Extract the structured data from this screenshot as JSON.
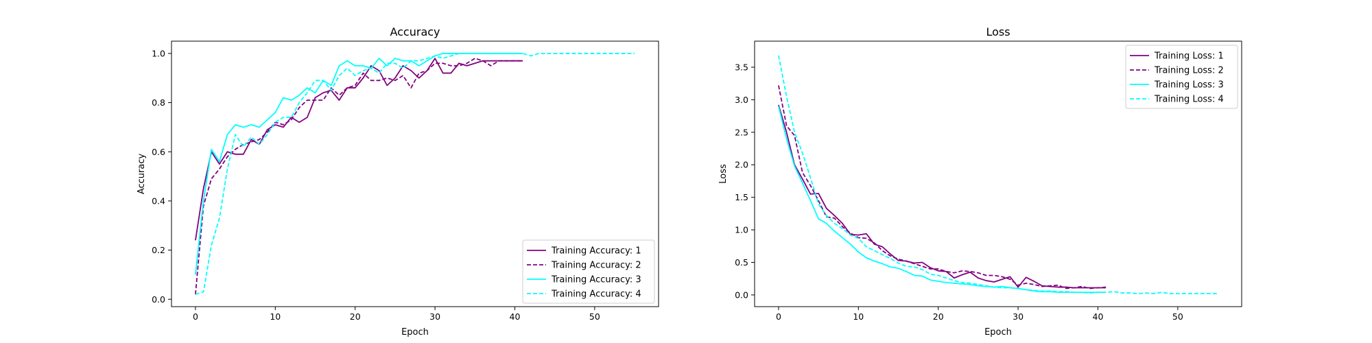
{
  "chart_data": [
    {
      "type": "line",
      "title": "Accuracy",
      "xlabel": "Epoch",
      "ylabel": "Accuracy",
      "xlim": [
        -3,
        58
      ],
      "ylim": [
        -0.03,
        1.05
      ],
      "xticks": [
        0,
        10,
        20,
        30,
        40,
        50
      ],
      "yticks": [
        0.0,
        0.2,
        0.4,
        0.6,
        0.8,
        1.0
      ],
      "xtick_labels": [
        "0",
        "10",
        "20",
        "30",
        "40",
        "50"
      ],
      "ytick_labels": [
        "0.0",
        "0.2",
        "0.4",
        "0.6",
        "0.8",
        "1.0"
      ],
      "grid": false,
      "legend_position": "lower-right",
      "series": [
        {
          "name": "Training Accuracy: 1",
          "color": "#800080",
          "dash": "solid",
          "x": [
            0,
            1,
            2,
            3,
            4,
            5,
            6,
            7,
            8,
            9,
            10,
            11,
            12,
            13,
            14,
            15,
            16,
            17,
            18,
            19,
            20,
            21,
            22,
            23,
            24,
            25,
            26,
            27,
            28,
            29,
            30,
            31,
            32,
            33,
            34,
            35,
            36,
            37,
            38,
            39,
            40,
            41
          ],
          "y": [
            0.24,
            0.45,
            0.6,
            0.55,
            0.6,
            0.59,
            0.59,
            0.65,
            0.63,
            0.69,
            0.71,
            0.7,
            0.74,
            0.72,
            0.74,
            0.82,
            0.84,
            0.85,
            0.81,
            0.86,
            0.86,
            0.9,
            0.95,
            0.93,
            0.87,
            0.9,
            0.95,
            0.93,
            0.9,
            0.93,
            0.98,
            0.92,
            0.92,
            0.96,
            0.95,
            0.96,
            0.97,
            0.97,
            0.97,
            0.97,
            0.97,
            0.97
          ]
        },
        {
          "name": "Training Accuracy: 2",
          "color": "#800080",
          "dash": "dashed",
          "x": [
            0,
            1,
            2,
            3,
            4,
            5,
            6,
            7,
            8,
            9,
            10,
            11,
            12,
            13,
            14,
            15,
            16,
            17,
            18,
            19,
            20,
            21,
            22,
            23,
            24,
            25,
            26,
            27,
            28,
            29,
            30,
            31,
            32,
            33,
            34,
            35,
            36,
            37,
            38,
            39,
            40,
            41
          ],
          "y": [
            0.02,
            0.38,
            0.49,
            0.53,
            0.58,
            0.61,
            0.63,
            0.64,
            0.65,
            0.68,
            0.72,
            0.71,
            0.73,
            0.78,
            0.81,
            0.81,
            0.81,
            0.86,
            0.83,
            0.86,
            0.87,
            0.92,
            0.89,
            0.89,
            0.9,
            0.89,
            0.91,
            0.86,
            0.92,
            0.93,
            0.96,
            0.96,
            0.95,
            0.95,
            0.96,
            0.98,
            0.97,
            0.95,
            0.97,
            0.97,
            0.97,
            0.97
          ]
        },
        {
          "name": "Training Accuracy: 3",
          "color": "#00ffff",
          "dash": "solid",
          "x": [
            0,
            1,
            2,
            3,
            4,
            5,
            6,
            7,
            8,
            9,
            10,
            11,
            12,
            13,
            14,
            15,
            16,
            17,
            18,
            19,
            20,
            21,
            22,
            23,
            24,
            25,
            26,
            27,
            28,
            29,
            30,
            31,
            32,
            33,
            34,
            35,
            36,
            37,
            38,
            39,
            40,
            41
          ],
          "y": [
            0.1,
            0.4,
            0.61,
            0.56,
            0.67,
            0.71,
            0.7,
            0.71,
            0.7,
            0.73,
            0.76,
            0.82,
            0.81,
            0.83,
            0.86,
            0.84,
            0.89,
            0.87,
            0.95,
            0.97,
            0.95,
            0.95,
            0.94,
            0.98,
            0.95,
            0.98,
            0.97,
            0.97,
            0.95,
            0.97,
            0.99,
            1.0,
            1.0,
            1.0,
            1.0,
            1.0,
            1.0,
            1.0,
            1.0,
            1.0,
            1.0,
            1.0
          ]
        },
        {
          "name": "Training Accuracy: 4",
          "color": "#00ffff",
          "dash": "dashed",
          "x": [
            0,
            1,
            2,
            3,
            4,
            5,
            6,
            7,
            8,
            9,
            10,
            11,
            12,
            13,
            14,
            15,
            16,
            17,
            18,
            19,
            20,
            21,
            22,
            23,
            24,
            25,
            26,
            27,
            28,
            29,
            30,
            31,
            32,
            33,
            34,
            35,
            36,
            37,
            38,
            39,
            40,
            41,
            42,
            43,
            44,
            45,
            46,
            47,
            48,
            49,
            50,
            51,
            52,
            53,
            54,
            55
          ],
          "y": [
            0.02,
            0.03,
            0.22,
            0.33,
            0.53,
            0.67,
            0.62,
            0.66,
            0.63,
            0.67,
            0.72,
            0.74,
            0.74,
            0.8,
            0.84,
            0.89,
            0.89,
            0.85,
            0.91,
            0.94,
            0.91,
            0.93,
            0.94,
            0.92,
            0.96,
            0.96,
            0.94,
            0.97,
            0.97,
            0.98,
            0.99,
            0.98,
            0.99,
            1.0,
            1.0,
            1.0,
            1.0,
            1.0,
            1.0,
            1.0,
            1.0,
            1.0,
            0.99,
            1.0,
            1.0,
            1.0,
            1.0,
            1.0,
            1.0,
            1.0,
            1.0,
            1.0,
            1.0,
            1.0,
            1.0,
            1.0
          ]
        }
      ]
    },
    {
      "type": "line",
      "title": "Loss",
      "xlabel": "Epoch",
      "ylabel": "Loss",
      "xlim": [
        -3,
        58
      ],
      "ylim": [
        -0.18,
        3.9
      ],
      "xticks": [
        0,
        10,
        20,
        30,
        40,
        50
      ],
      "yticks": [
        0.0,
        0.5,
        1.0,
        1.5,
        2.0,
        2.5,
        3.0,
        3.5
      ],
      "xtick_labels": [
        "0",
        "10",
        "20",
        "30",
        "40",
        "50"
      ],
      "ytick_labels": [
        "0.0",
        "0.5",
        "1.0",
        "1.5",
        "2.0",
        "2.5",
        "3.0",
        "3.5"
      ],
      "grid": false,
      "legend_position": "upper-right",
      "series": [
        {
          "name": "Training Loss: 1",
          "color": "#800080",
          "dash": "solid",
          "x": [
            0,
            1,
            2,
            3,
            4,
            5,
            6,
            7,
            8,
            9,
            10,
            11,
            12,
            13,
            14,
            15,
            16,
            17,
            18,
            19,
            20,
            21,
            22,
            23,
            24,
            25,
            26,
            27,
            28,
            29,
            30,
            31,
            32,
            33,
            34,
            35,
            36,
            37,
            38,
            39,
            40,
            41
          ],
          "y": [
            2.92,
            2.5,
            2.0,
            1.78,
            1.55,
            1.56,
            1.33,
            1.22,
            1.1,
            0.93,
            0.92,
            0.94,
            0.78,
            0.74,
            0.63,
            0.53,
            0.52,
            0.49,
            0.5,
            0.42,
            0.37,
            0.36,
            0.26,
            0.31,
            0.35,
            0.26,
            0.22,
            0.2,
            0.24,
            0.28,
            0.12,
            0.27,
            0.21,
            0.14,
            0.13,
            0.12,
            0.12,
            0.11,
            0.11,
            0.11,
            0.11,
            0.11
          ]
        },
        {
          "name": "Training Loss: 2",
          "color": "#800080",
          "dash": "dashed",
          "x": [
            0,
            1,
            2,
            3,
            4,
            5,
            6,
            7,
            8,
            9,
            10,
            11,
            12,
            13,
            14,
            15,
            16,
            17,
            18,
            19,
            20,
            21,
            22,
            23,
            24,
            25,
            26,
            27,
            28,
            29,
            30,
            31,
            32,
            33,
            34,
            35,
            36,
            37,
            38,
            39,
            40,
            41
          ],
          "y": [
            3.22,
            2.6,
            2.45,
            1.88,
            1.68,
            1.45,
            1.2,
            1.18,
            1.05,
            0.95,
            0.88,
            0.87,
            0.8,
            0.68,
            0.6,
            0.55,
            0.52,
            0.48,
            0.44,
            0.4,
            0.4,
            0.36,
            0.34,
            0.37,
            0.36,
            0.34,
            0.3,
            0.3,
            0.28,
            0.24,
            0.15,
            0.18,
            0.16,
            0.13,
            0.14,
            0.15,
            0.1,
            0.11,
            0.13,
            0.1,
            0.11,
            0.12
          ]
        },
        {
          "name": "Training Loss: 3",
          "color": "#00ffff",
          "dash": "solid",
          "x": [
            0,
            1,
            2,
            3,
            4,
            5,
            6,
            7,
            8,
            9,
            10,
            11,
            12,
            13,
            14,
            15,
            16,
            17,
            18,
            19,
            20,
            21,
            22,
            23,
            24,
            25,
            26,
            27,
            28,
            29,
            30,
            31,
            32,
            33,
            34,
            35,
            36,
            37,
            38,
            39,
            40,
            41
          ],
          "y": [
            2.9,
            2.4,
            1.98,
            1.72,
            1.45,
            1.17,
            1.1,
            0.98,
            0.88,
            0.78,
            0.66,
            0.57,
            0.52,
            0.48,
            0.43,
            0.41,
            0.36,
            0.3,
            0.29,
            0.23,
            0.21,
            0.19,
            0.18,
            0.17,
            0.16,
            0.14,
            0.13,
            0.12,
            0.13,
            0.11,
            0.1,
            0.08,
            0.06,
            0.05,
            0.05,
            0.04,
            0.04,
            0.04,
            0.04,
            0.04,
            0.04,
            0.04
          ]
        },
        {
          "name": "Training Loss: 4",
          "color": "#00ffff",
          "dash": "dashed",
          "x": [
            0,
            1,
            2,
            3,
            4,
            5,
            6,
            7,
            8,
            9,
            10,
            11,
            12,
            13,
            14,
            15,
            16,
            17,
            18,
            19,
            20,
            21,
            22,
            23,
            24,
            25,
            26,
            27,
            28,
            29,
            30,
            31,
            32,
            33,
            34,
            35,
            36,
            37,
            38,
            39,
            40,
            41,
            42,
            43,
            44,
            45,
            46,
            47,
            48,
            49,
            50,
            51,
            52,
            53,
            54,
            55
          ],
          "y": [
            3.68,
            3.05,
            2.5,
            2.18,
            1.8,
            1.4,
            1.22,
            1.1,
            1.02,
            0.92,
            0.87,
            0.74,
            0.68,
            0.62,
            0.56,
            0.49,
            0.44,
            0.43,
            0.39,
            0.32,
            0.3,
            0.26,
            0.22,
            0.19,
            0.18,
            0.16,
            0.14,
            0.12,
            0.11,
            0.11,
            0.1,
            0.08,
            0.07,
            0.06,
            0.06,
            0.05,
            0.05,
            0.04,
            0.04,
            0.03,
            0.04,
            0.04,
            0.05,
            0.03,
            0.03,
            0.02,
            0.03,
            0.02,
            0.04,
            0.02,
            0.02,
            0.02,
            0.02,
            0.02,
            0.02,
            0.02
          ]
        }
      ]
    }
  ]
}
